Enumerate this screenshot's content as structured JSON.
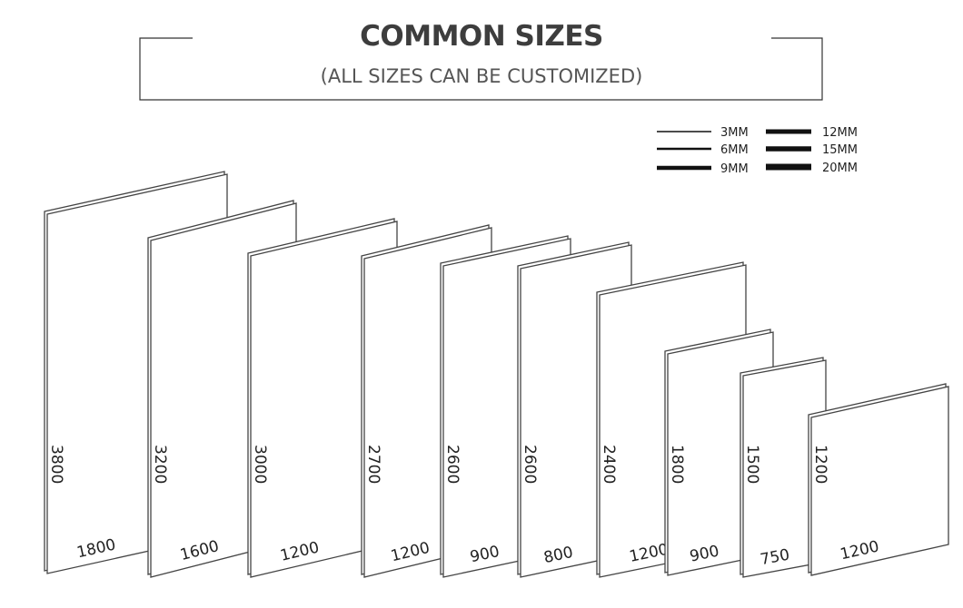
{
  "header": {
    "title": "COMMON SIZES",
    "subtitle": "(ALL SIZES CAN BE CUSTOMIZED)"
  },
  "thickness_legend": [
    {
      "label": "3MM",
      "thickness_mm": 3
    },
    {
      "label": "6MM",
      "thickness_mm": 6
    },
    {
      "label": "9MM",
      "thickness_mm": 9
    },
    {
      "label": "12MM",
      "thickness_mm": 12
    },
    {
      "label": "15MM",
      "thickness_mm": 15
    },
    {
      "label": "20MM",
      "thickness_mm": 20
    }
  ],
  "panels": [
    {
      "height": "3800",
      "width": "1800"
    },
    {
      "height": "3200",
      "width": "1600"
    },
    {
      "height": "3000",
      "width": "1200"
    },
    {
      "height": "2700",
      "width": "1200"
    },
    {
      "height": "2600",
      "width": "900"
    },
    {
      "height": "2600",
      "width": "800"
    },
    {
      "height": "2400",
      "width": "1200"
    },
    {
      "height": "1800",
      "width": "900"
    },
    {
      "height": "1500",
      "width": "750"
    },
    {
      "height": "1200",
      "width": "1200"
    }
  ],
  "colors": {
    "line": "#333333",
    "title": "#3d3d3d"
  }
}
